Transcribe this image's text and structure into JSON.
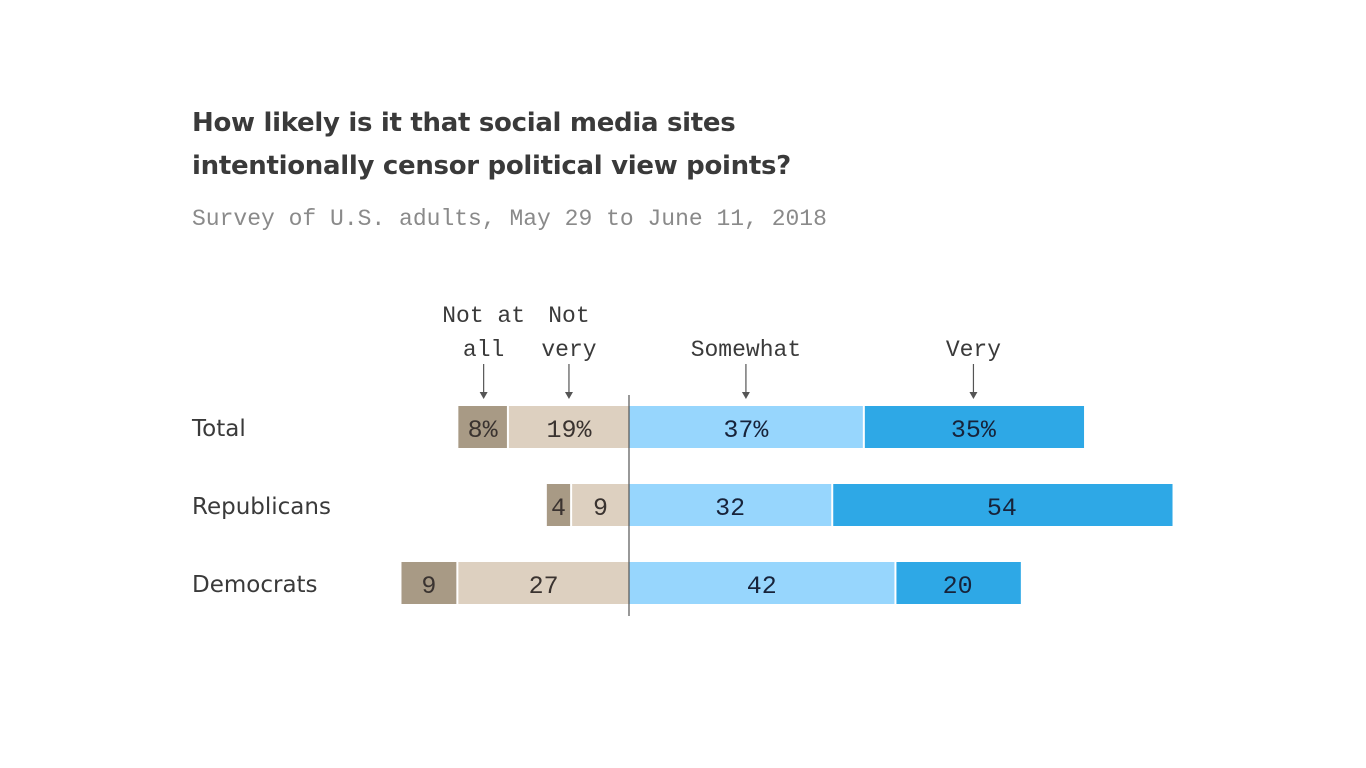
{
  "chart_data": {
    "type": "bar",
    "orientation": "horizontal-diverging",
    "title_lines": [
      "How likely is it that social media sites",
      "intentionally censor political view points?"
    ],
    "subtitle": "Survey of U.S. adults, May 29 to June 11, 2018",
    "categories": [
      "Total",
      "Republicans",
      "Democrats"
    ],
    "series": [
      {
        "name": "Not at all",
        "label_lines": [
          "Not at",
          "all"
        ],
        "side": "negative",
        "color": "#a89a85",
        "values": [
          8,
          4,
          9
        ],
        "labels": [
          "8%",
          "4",
          "9"
        ]
      },
      {
        "name": "Not very",
        "label_lines": [
          "Not",
          "very"
        ],
        "side": "negative",
        "color": "#ddd0c0",
        "values": [
          19,
          9,
          27
        ],
        "labels": [
          "19%",
          "9",
          "27"
        ]
      },
      {
        "name": "Somewhat",
        "label_lines": [
          "",
          "Somewhat"
        ],
        "side": "positive",
        "color": "#97d6fd",
        "values": [
          37,
          32,
          42
        ],
        "labels": [
          "37%",
          "32",
          "42"
        ]
      },
      {
        "name": "Very",
        "label_lines": [
          "",
          "Very"
        ],
        "side": "positive",
        "color": "#2ea8e6",
        "values": [
          35,
          54,
          20
        ],
        "labels": [
          "35%",
          "54",
          "20"
        ]
      }
    ],
    "grid": false
  }
}
